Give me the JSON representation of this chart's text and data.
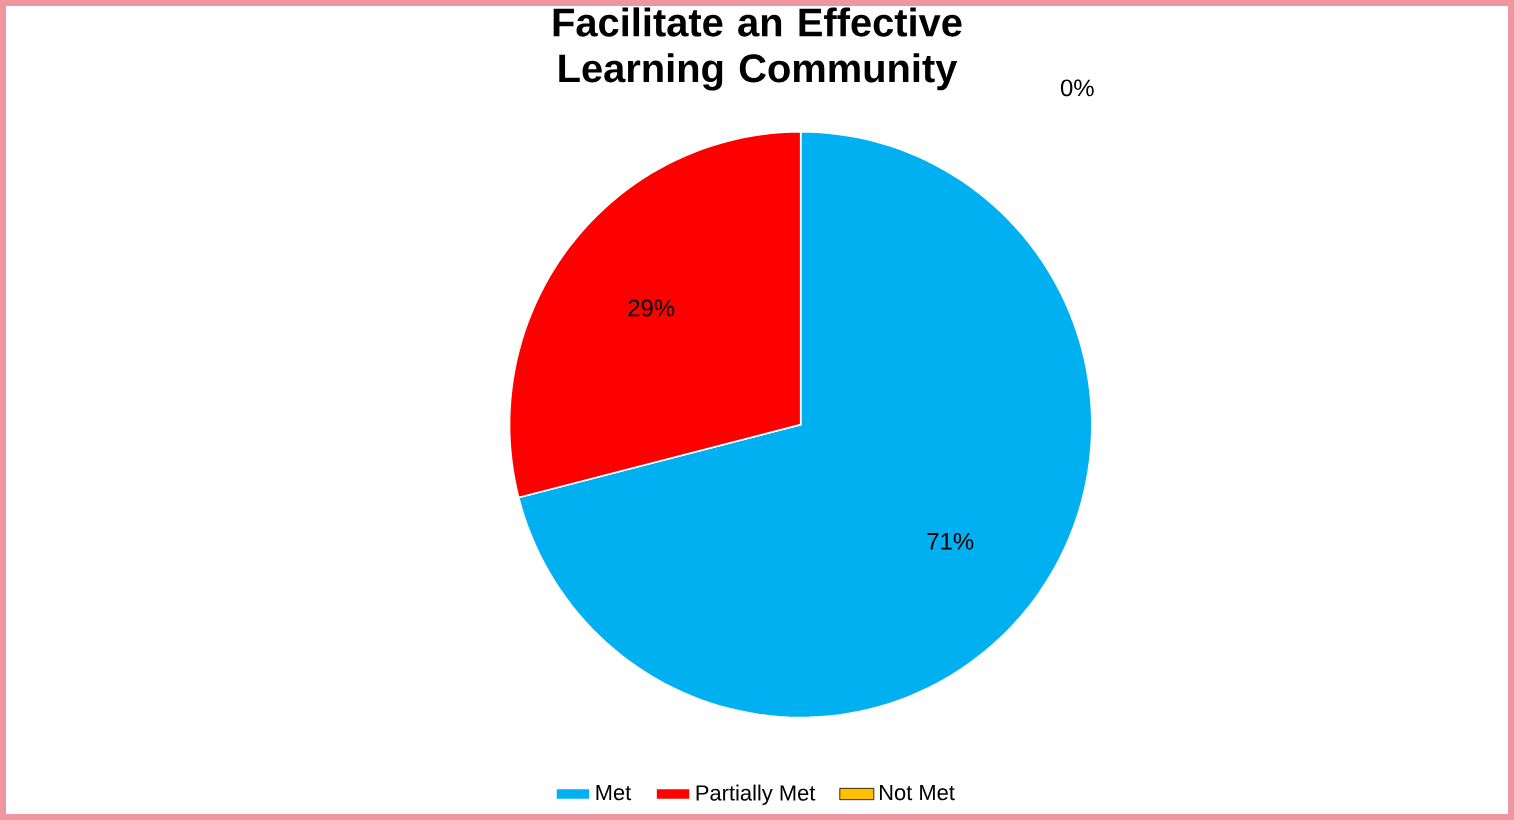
{
  "chart_data": {
    "type": "pie",
    "title": "Facilitate an Effective Learning Community",
    "categories": [
      "Met",
      "Partially Met",
      "Not Met"
    ],
    "values": [
      71,
      29,
      0
    ],
    "value_labels": [
      "71%",
      "29%",
      "0%"
    ],
    "colors": [
      "#00b0f0",
      "#ff0000",
      "#ffc000"
    ],
    "legend": "bottom"
  }
}
